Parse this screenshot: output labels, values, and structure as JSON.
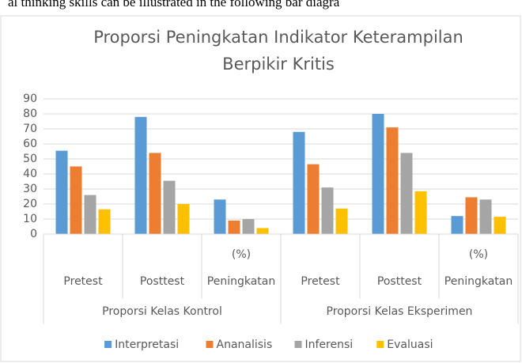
{
  "page_text": "al thinking skills can be illustrated in the following bar diagra",
  "chart_data": {
    "type": "bar",
    "title": [
      "Proporsi Peningkatan Indikator Keterampilan",
      "Berpikir Kritis"
    ],
    "groups": [
      {
        "name": "Proporsi Kelas Kontrol",
        "categories": [
          [
            "Pretest"
          ],
          [
            "Posttest"
          ],
          [
            "(%)",
            "Peningkatan"
          ]
        ]
      },
      {
        "name": "Proporsi Kelas Eksperimen",
        "categories": [
          [
            "Pretest"
          ],
          [
            "Posttest"
          ],
          [
            "(%)",
            "Peningkatan"
          ]
        ]
      }
    ],
    "series": [
      {
        "name": "Interpretasi",
        "color": "#5b9bd5",
        "values": [
          55.5,
          78,
          23,
          68,
          80,
          12
        ]
      },
      {
        "name": "Ananalisis",
        "color": "#ed7d31",
        "values": [
          45,
          54,
          9,
          46.5,
          71,
          24.5
        ]
      },
      {
        "name": "Inferensi",
        "color": "#a5a5a5",
        "values": [
          26,
          35.5,
          10,
          31,
          54,
          23
        ]
      },
      {
        "name": "Evaluasi",
        "color": "#ffc000",
        "values": [
          16.5,
          20,
          4,
          17,
          28.5,
          11.5
        ]
      }
    ],
    "ylim": [
      0,
      90
    ],
    "yticks": [
      0,
      10,
      20,
      30,
      40,
      50,
      60,
      70,
      80,
      90
    ],
    "grid": true,
    "legend": "bottom"
  }
}
